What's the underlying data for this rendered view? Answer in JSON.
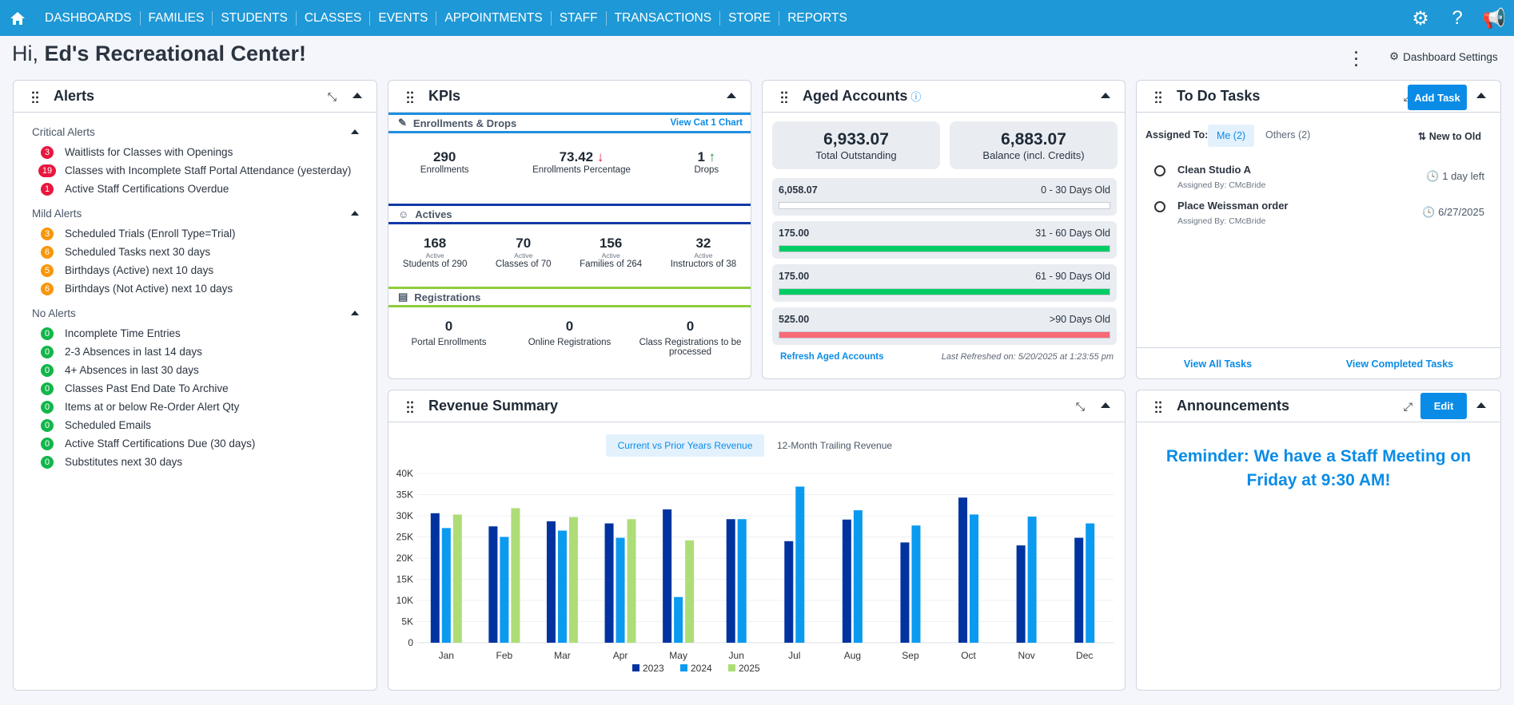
{
  "nav": {
    "items": [
      "DASHBOARDS",
      "FAMILIES",
      "STUDENTS",
      "CLASSES",
      "EVENTS",
      "APPOINTMENTS",
      "STAFF",
      "TRANSACTIONS",
      "STORE",
      "REPORTS"
    ],
    "icons": [
      "home-icon",
      "gear-icon",
      "help-icon",
      "megaphone-icon"
    ]
  },
  "greeting": {
    "prefix": "Hi, ",
    "name": "Ed's Recreational Center!"
  },
  "dashboard_settings": "Dashboard Settings",
  "alerts": {
    "title": "Alerts",
    "sections": [
      {
        "label": "Critical Alerts",
        "color": "#e8173f",
        "items": [
          {
            "count": "3",
            "label": "Waitlists for Classes with Openings"
          },
          {
            "count": "19",
            "label": "Classes with Incomplete Staff Portal Attendance (yesterday)"
          },
          {
            "count": "1",
            "label": "Active Staff Certifications Overdue"
          }
        ]
      },
      {
        "label": "Mild Alerts",
        "color": "#f7960c",
        "items": [
          {
            "count": "3",
            "label": "Scheduled Trials (Enroll Type=Trial)"
          },
          {
            "count": "6",
            "label": "Scheduled Tasks next 30 days"
          },
          {
            "count": "5",
            "label": "Birthdays (Active) next 10 days"
          },
          {
            "count": "6",
            "label": "Birthdays (Not Active) next 10 days"
          }
        ]
      },
      {
        "label": "No Alerts",
        "color": "#12b64a",
        "items": [
          {
            "count": "0",
            "label": "Incomplete Time Entries"
          },
          {
            "count": "0",
            "label": "2-3 Absences in last 14 days"
          },
          {
            "count": "0",
            "label": "4+ Absences in last 30 days"
          },
          {
            "count": "0",
            "label": "Classes Past End Date To Archive"
          },
          {
            "count": "0",
            "label": "Items at or below Re-Order Alert Qty"
          },
          {
            "count": "0",
            "label": "Scheduled Emails"
          },
          {
            "count": "0",
            "label": "Active Staff Certifications Due (30 days)"
          },
          {
            "count": "0",
            "label": "Substitutes next 30 days"
          }
        ]
      }
    ]
  },
  "kpis": {
    "title": "KPIs",
    "enrollments": {
      "title": "Enrollments & Drops",
      "link": "View Cat 1 Chart",
      "color": "#1e8fe1",
      "items": [
        {
          "value": "290",
          "label": "Enrollments"
        },
        {
          "value": "73.42",
          "label": "Enrollments Percentage",
          "trend": "↓"
        },
        {
          "value": "1",
          "label": "Drops",
          "trend": "↑"
        }
      ]
    },
    "actives": {
      "title": "Actives",
      "color": "#1239a6",
      "items": [
        {
          "value": "168",
          "small": "Active",
          "label": "Students of 290"
        },
        {
          "value": "70",
          "small": "Active",
          "label": "Classes of 70"
        },
        {
          "value": "156",
          "small": "Active",
          "label": "Families of 264"
        },
        {
          "value": "32",
          "small": "Active",
          "label": "Instructors of 38"
        }
      ]
    },
    "registrations": {
      "title": "Registrations",
      "color": "#8dcc3c",
      "items": [
        {
          "value": "0",
          "label": "Portal Enrollments"
        },
        {
          "value": "0",
          "label": "Online Registrations"
        },
        {
          "value": "0",
          "label": "Class Registrations to be processed"
        }
      ]
    }
  },
  "aged": {
    "title": "Aged Accounts",
    "total": "6,933.07",
    "total_label": "Total Outstanding",
    "balance": "6,883.07",
    "balance_label": "Balance (incl. Credits)",
    "buckets": [
      {
        "value": "6,058.07",
        "label": "0 - 30 Days Old",
        "fill": 0,
        "color": "#00cc66"
      },
      {
        "value": "175.00",
        "label": "31 - 60 Days Old",
        "fill": 100,
        "color": "#00cc66"
      },
      {
        "value": "175.00",
        "label": "61 - 90 Days Old",
        "fill": 100,
        "color": "#00cc66"
      },
      {
        "value": "525.00",
        "label": ">90 Days Old",
        "fill": 100,
        "color": "#f76b75"
      }
    ],
    "refresh": "Refresh Aged Accounts",
    "last_refreshed": "Last Refreshed on: 5/20/2025 at 1:23:55 pm"
  },
  "tasks": {
    "title": "To Do Tasks",
    "add": "Add Task",
    "assigned_to": "Assigned To:",
    "me": "Me (2)",
    "others": "Others (2)",
    "sort": "New to Old",
    "items": [
      {
        "title": "Clean Studio A",
        "by": "Assigned By: CMcBride",
        "due": "1 day left"
      },
      {
        "title": "Place Weissman order",
        "by": "Assigned By: CMcBride",
        "due": "6/27/2025"
      }
    ],
    "view_all": "View All Tasks",
    "view_completed": "View Completed Tasks"
  },
  "revenue": {
    "title": "Revenue Summary",
    "tabs": [
      "Current vs Prior Years Revenue",
      "12-Month Trailing Revenue"
    ],
    "active_tab": 0
  },
  "announcements": {
    "title": "Announcements",
    "edit": "Edit",
    "message": "Reminder: We have a Staff Meeting on Friday at 9:30 AM!"
  },
  "chart_data": {
    "type": "bar",
    "categories": [
      "Jan",
      "Feb",
      "Mar",
      "Apr",
      "May",
      "Jun",
      "Jul",
      "Aug",
      "Sep",
      "Oct",
      "Nov",
      "Dec"
    ],
    "series": [
      {
        "name": "2023",
        "color": "#0033a0",
        "values": [
          30600,
          27500,
          28700,
          28200,
          31500,
          29200,
          24000,
          29100,
          23700,
          34300,
          23000,
          24800
        ]
      },
      {
        "name": "2024",
        "color": "#0a9af0",
        "values": [
          27100,
          25000,
          26500,
          24800,
          10800,
          29200,
          36900,
          31300,
          27700,
          30300,
          29800,
          28200
        ]
      },
      {
        "name": "2025",
        "color": "#aedd78",
        "values": [
          30300,
          31800,
          29700,
          29200,
          24200,
          null,
          null,
          null,
          null,
          null,
          null,
          null
        ]
      }
    ],
    "yticks": [
      "0",
      "5K",
      "10K",
      "15K",
      "20K",
      "25K",
      "30K",
      "35K",
      "40K"
    ],
    "ylim": [
      0,
      40000
    ],
    "grid": true,
    "legend": "bottom"
  }
}
